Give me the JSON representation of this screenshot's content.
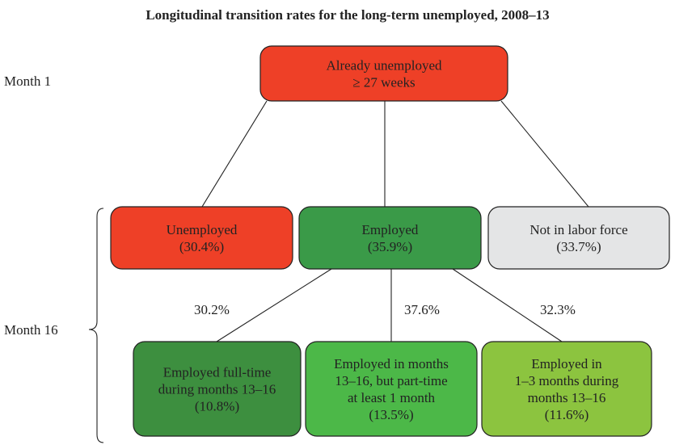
{
  "title": "Longitudinal transition rates for the long-term unemployed, 2008–13",
  "rows": [
    {
      "label": "Month 1"
    },
    {
      "label": "Month 16"
    }
  ],
  "nodes": [
    {
      "lines": [
        "Already unemployed",
        "≥ 27 weeks"
      ]
    },
    {
      "lines": [
        "Unemployed",
        "(30.4%)"
      ]
    },
    {
      "lines": [
        "Employed",
        "(35.9%)"
      ]
    },
    {
      "lines": [
        "Not in labor force",
        "(33.7%)"
      ]
    },
    {
      "lines": [
        "Employed full-time",
        "during months 13–16",
        "(10.8%)"
      ]
    },
    {
      "lines": [
        "Employed in months",
        "13–16, but part-time",
        "at least 1 month",
        "(13.5%)"
      ]
    },
    {
      "lines": [
        "Employed in",
        "1–3 months during",
        "months 13–16",
        "(11.6%)"
      ]
    }
  ],
  "edge_labels": [
    "30.2%",
    "37.6%",
    "32.3%"
  ]
}
